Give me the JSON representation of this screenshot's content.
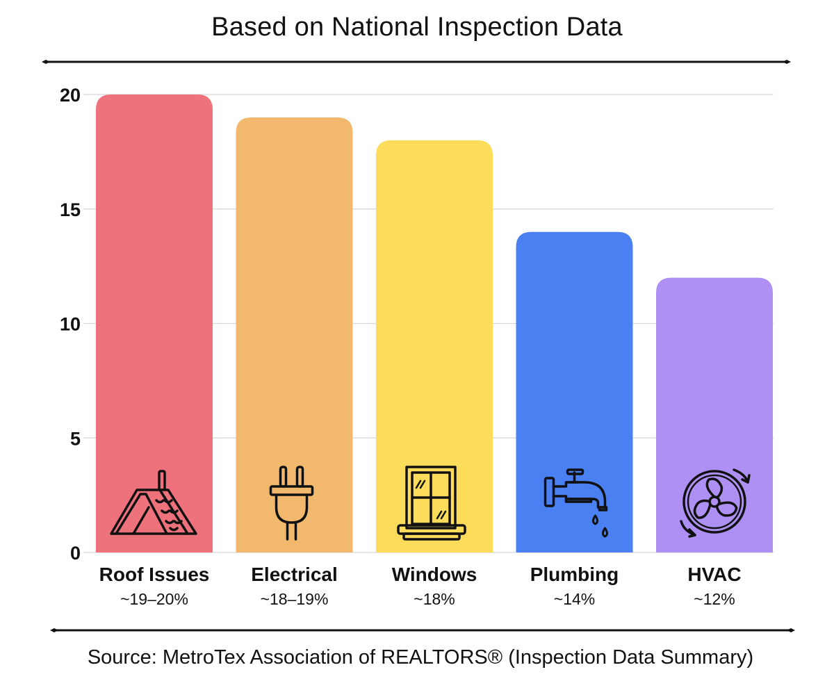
{
  "title": "Based on National Inspection Data",
  "source": "Source: MetroTex Association of REALTORS® (Inspection Data Summary)",
  "chart_data": {
    "type": "bar",
    "title": "Based on National Inspection Data",
    "categories": [
      "Roof Issues",
      "Electrical",
      "Windows",
      "Plumbing",
      "HVAC"
    ],
    "value_labels": [
      "~19–20%",
      "~18–19%",
      "~18%",
      "~14%",
      "~12%"
    ],
    "values": [
      20,
      19,
      18,
      14,
      12
    ],
    "colors": [
      "#ee727c",
      "#f2b86e",
      "#fddc5c",
      "#4a80f1",
      "#ae90f4"
    ],
    "icons": [
      "roof-icon",
      "plug-icon",
      "window-icon",
      "faucet-icon",
      "fan-icon"
    ],
    "y_ticks": [
      0,
      5,
      10,
      15,
      20
    ],
    "ylim": [
      0,
      20
    ],
    "grid": true,
    "xlabel": "",
    "ylabel": ""
  }
}
